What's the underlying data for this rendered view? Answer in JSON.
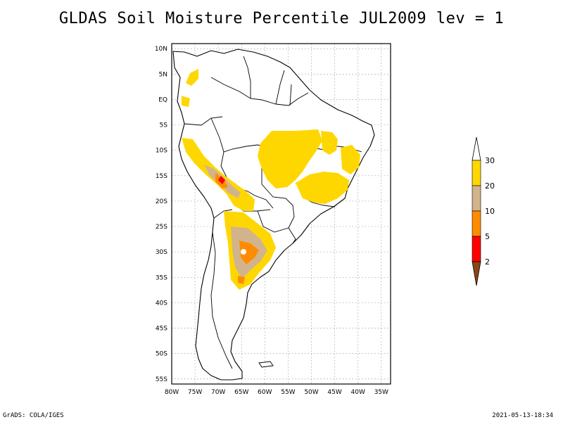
{
  "title": "GLDAS Soil Moisture Percentile JUL2009 lev = 1",
  "footer": {
    "left": "GrADS: COLA/IGES",
    "right": "2021-05-13-18:34"
  },
  "map": {
    "lat_labels": [
      "10N",
      "5N",
      "EQ",
      "5S",
      "10S",
      "15S",
      "20S",
      "25S",
      "30S",
      "35S",
      "40S",
      "45S",
      "50S",
      "55S"
    ],
    "lat_values": [
      10,
      5,
      0,
      -5,
      -10,
      -15,
      -20,
      -25,
      -30,
      -35,
      -40,
      -45,
      -50,
      -55
    ],
    "lon_labels": [
      "80W",
      "75W",
      "70W",
      "65W",
      "60W",
      "55W",
      "50W",
      "45W",
      "40W",
      "35W"
    ],
    "lon_values": [
      -80,
      -75,
      -70,
      -65,
      -60,
      -55,
      -50,
      -45,
      -40,
      -35
    ],
    "extent": {
      "lon_min": -80,
      "lon_max": -33,
      "lat_min": -56,
      "lat_max": 11
    },
    "grid": true
  },
  "legend": {
    "labels": [
      "30",
      "20",
      "10",
      "5",
      "2"
    ],
    "colors": {
      "above_30": "#ffffff",
      "20_30": "#ffd700",
      "10_20": "#d2b48c",
      "5_10": "#ff8c00",
      "2_5": "#ff0000",
      "below_2": "#8b4513"
    }
  }
}
